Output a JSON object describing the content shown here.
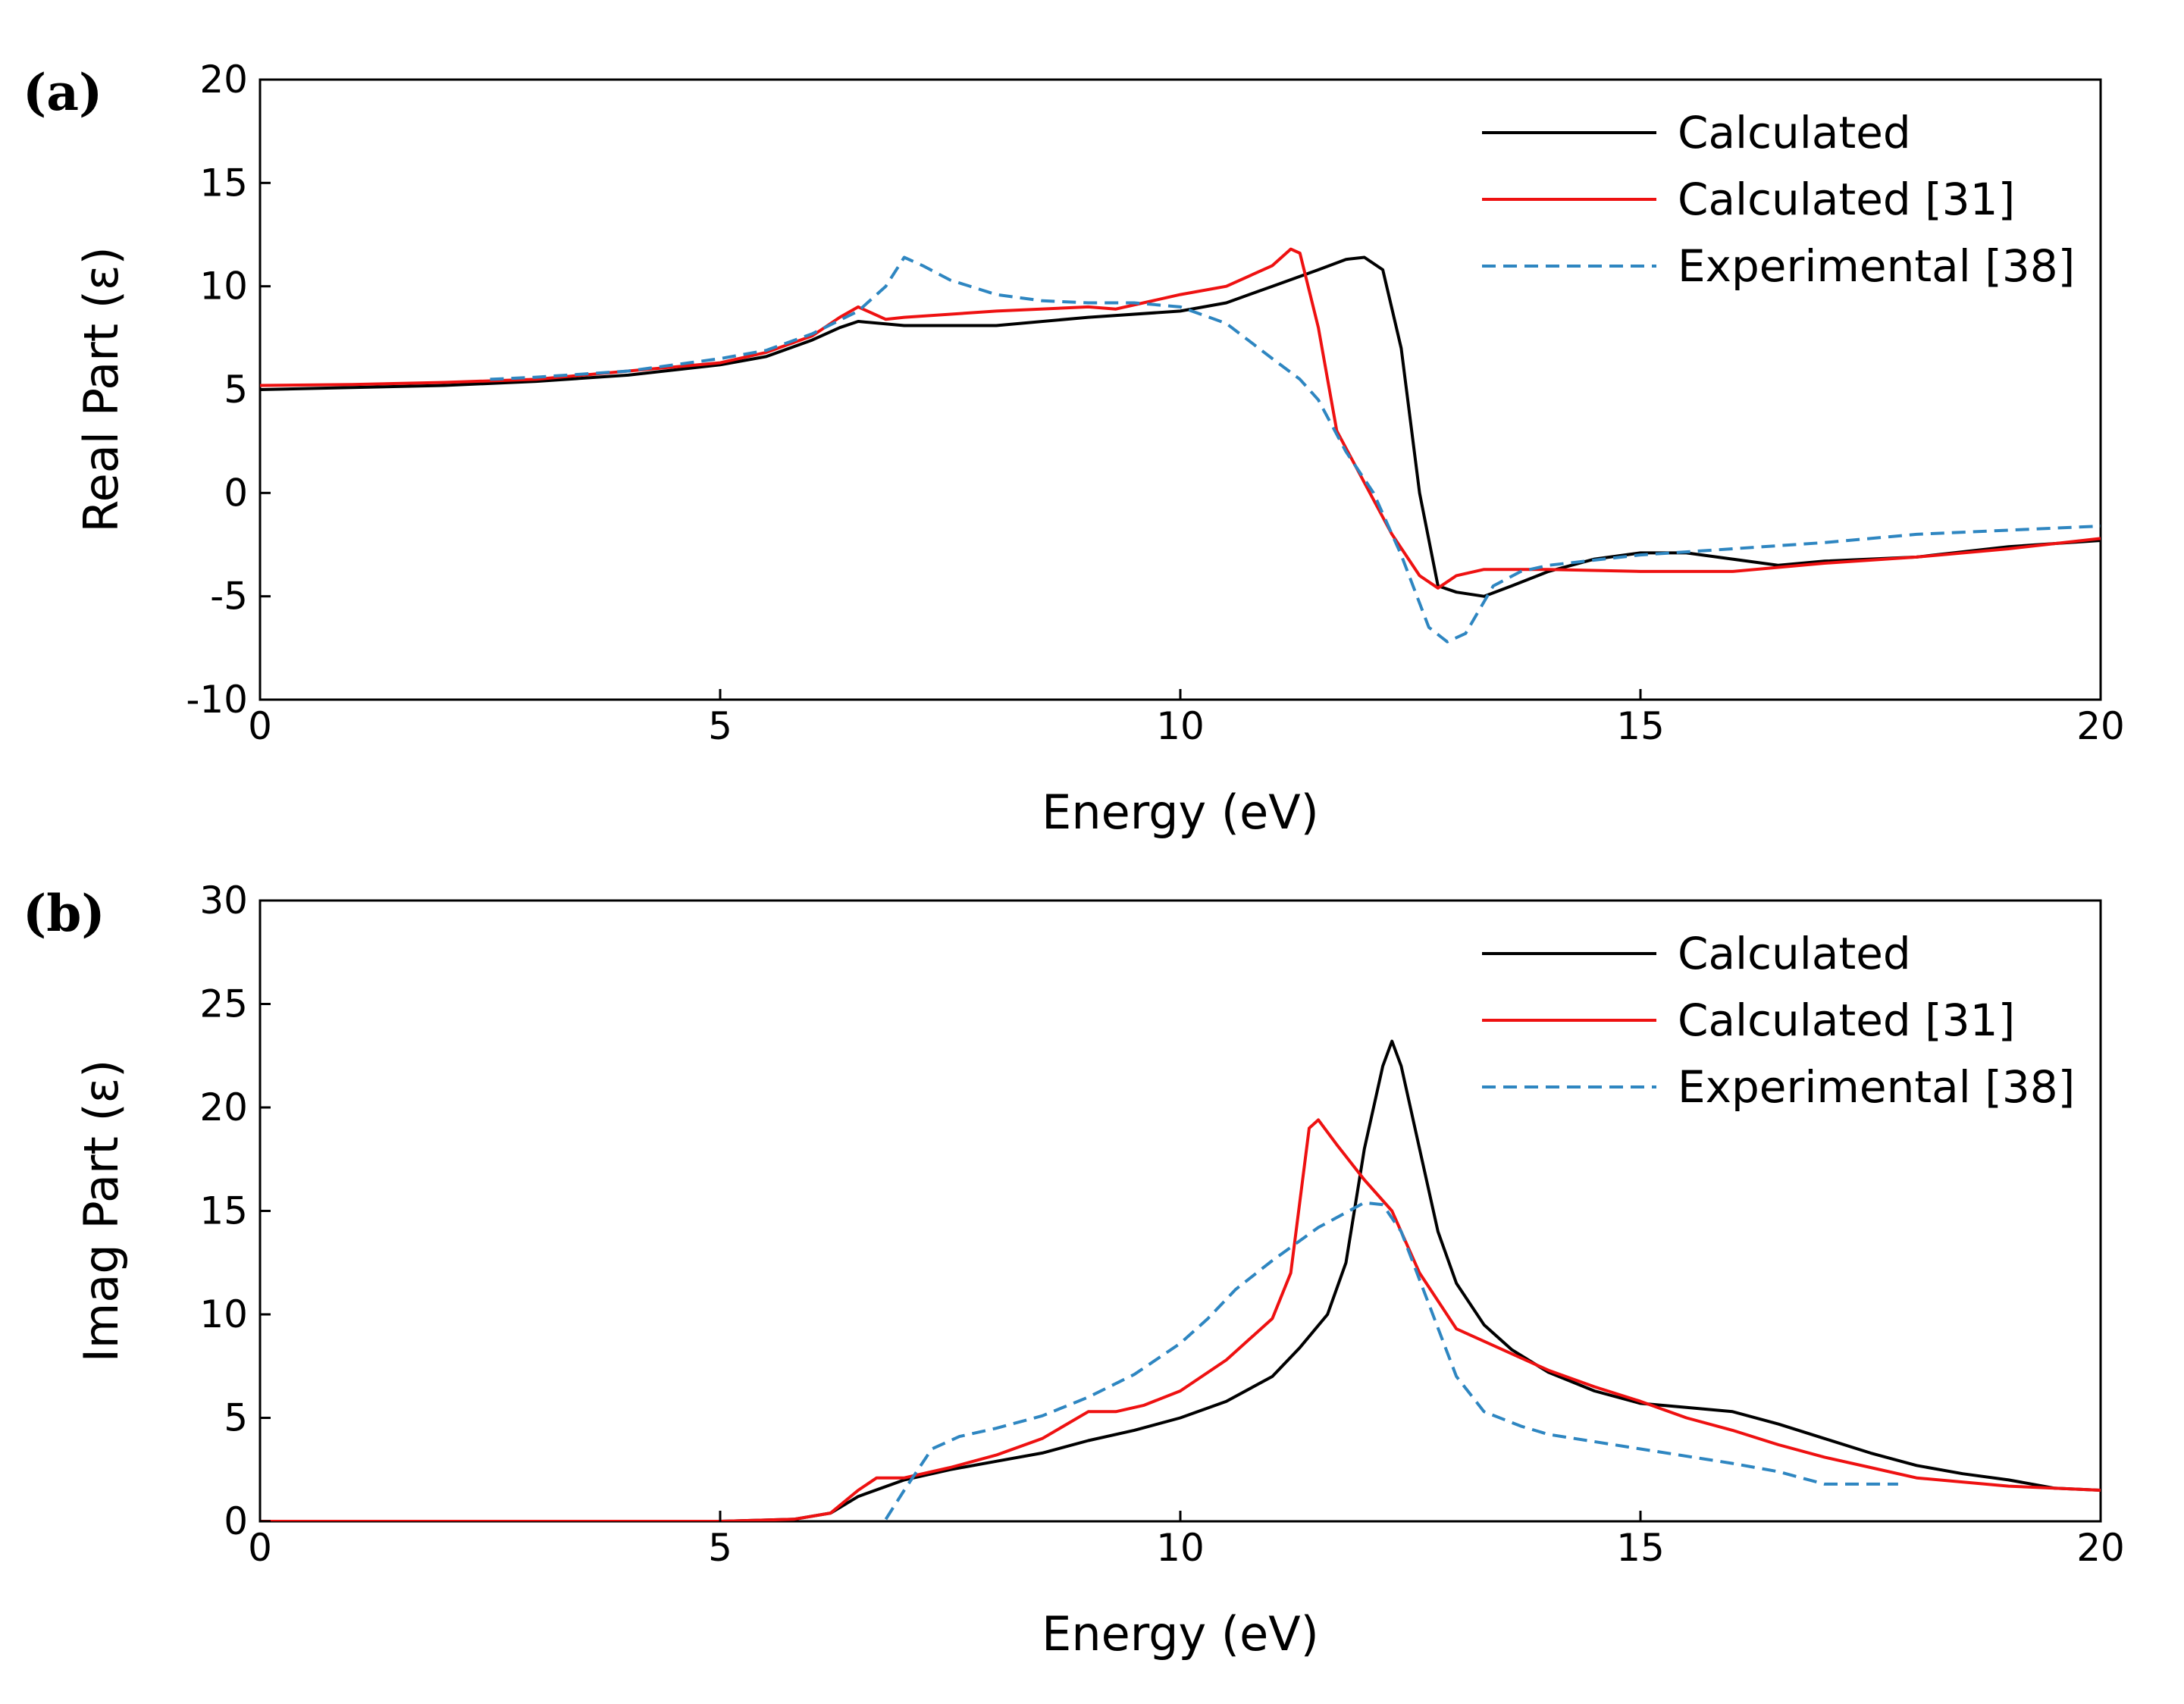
{
  "chart_data": [
    {
      "panel_label": "(a)",
      "type": "line",
      "xlabel": "Energy (eV)",
      "ylabel": "Real Part (ε)",
      "xlim": [
        0,
        20
      ],
      "ylim": [
        -10,
        20
      ],
      "xticks": [
        0,
        5,
        10,
        15,
        20
      ],
      "yticks": [
        -10,
        -5,
        0,
        5,
        10,
        15,
        20
      ],
      "grid": false,
      "legend_position": "top-right",
      "series": [
        {
          "name": "Calculated",
          "color": "#000000",
          "dash": "solid",
          "points": [
            [
              0,
              5.0
            ],
            [
              1,
              5.1
            ],
            [
              2,
              5.2
            ],
            [
              3,
              5.4
            ],
            [
              4,
              5.7
            ],
            [
              5,
              6.2
            ],
            [
              5.5,
              6.6
            ],
            [
              6,
              7.4
            ],
            [
              6.3,
              8.0
            ],
            [
              6.5,
              8.3
            ],
            [
              7,
              8.1
            ],
            [
              8,
              8.1
            ],
            [
              9,
              8.5
            ],
            [
              10,
              8.8
            ],
            [
              10.5,
              9.2
            ],
            [
              11,
              10.0
            ],
            [
              11.5,
              10.8
            ],
            [
              11.8,
              11.3
            ],
            [
              12,
              11.4
            ],
            [
              12.2,
              10.8
            ],
            [
              12.4,
              7.0
            ],
            [
              12.6,
              0.0
            ],
            [
              12.8,
              -4.5
            ],
            [
              13,
              -4.8
            ],
            [
              13.3,
              -5.0
            ],
            [
              13.6,
              -4.5
            ],
            [
              14,
              -3.8
            ],
            [
              14.5,
              -3.2
            ],
            [
              15,
              -2.9
            ],
            [
              15.5,
              -2.9
            ],
            [
              16,
              -3.2
            ],
            [
              16.5,
              -3.5
            ],
            [
              17,
              -3.3
            ],
            [
              18,
              -3.1
            ],
            [
              19,
              -2.6
            ],
            [
              20,
              -2.3
            ]
          ]
        },
        {
          "name": "Calculated [31]",
          "color": "#ee1111",
          "dash": "solid",
          "points": [
            [
              0,
              5.2
            ],
            [
              1,
              5.25
            ],
            [
              2,
              5.35
            ],
            [
              3,
              5.5
            ],
            [
              4,
              5.9
            ],
            [
              5,
              6.3
            ],
            [
              5.5,
              6.8
            ],
            [
              6,
              7.6
            ],
            [
              6.3,
              8.5
            ],
            [
              6.5,
              9.0
            ],
            [
              6.8,
              8.4
            ],
            [
              7,
              8.5
            ],
            [
              8,
              8.8
            ],
            [
              9,
              9.0
            ],
            [
              9.3,
              8.9
            ],
            [
              9.6,
              9.2
            ],
            [
              10,
              9.6
            ],
            [
              10.5,
              10.0
            ],
            [
              11,
              11.0
            ],
            [
              11.2,
              11.8
            ],
            [
              11.3,
              11.6
            ],
            [
              11.5,
              8.0
            ],
            [
              11.7,
              3.0
            ],
            [
              12,
              0.5
            ],
            [
              12.3,
              -2.0
            ],
            [
              12.6,
              -4.0
            ],
            [
              12.8,
              -4.6
            ],
            [
              13,
              -4.0
            ],
            [
              13.3,
              -3.7
            ],
            [
              14,
              -3.7
            ],
            [
              15,
              -3.8
            ],
            [
              16,
              -3.8
            ],
            [
              17,
              -3.4
            ],
            [
              18,
              -3.1
            ],
            [
              19,
              -2.7
            ],
            [
              20,
              -2.2
            ]
          ]
        },
        {
          "name": "Experimental [38]",
          "color": "#2e86c1",
          "dash": "dashed",
          "points": [
            [
              2.5,
              5.5
            ],
            [
              3,
              5.6
            ],
            [
              4,
              5.9
            ],
            [
              5,
              6.5
            ],
            [
              5.5,
              6.9
            ],
            [
              6,
              7.7
            ],
            [
              6.5,
              8.8
            ],
            [
              6.8,
              10.0
            ],
            [
              7,
              11.4
            ],
            [
              7.2,
              11.0
            ],
            [
              7.5,
              10.3
            ],
            [
              8,
              9.6
            ],
            [
              8.5,
              9.3
            ],
            [
              9,
              9.2
            ],
            [
              9.5,
              9.2
            ],
            [
              10,
              9.0
            ],
            [
              10.5,
              8.2
            ],
            [
              11,
              6.5
            ],
            [
              11.3,
              5.5
            ],
            [
              11.5,
              4.5
            ],
            [
              11.8,
              2.0
            ],
            [
              12.1,
              0.0
            ],
            [
              12.4,
              -3.0
            ],
            [
              12.7,
              -6.5
            ],
            [
              12.9,
              -7.2
            ],
            [
              13.1,
              -6.8
            ],
            [
              13.4,
              -4.5
            ],
            [
              13.7,
              -3.8
            ],
            [
              14,
              -3.5
            ],
            [
              15,
              -3.0
            ],
            [
              16,
              -2.7
            ],
            [
              17,
              -2.4
            ],
            [
              18,
              -2.0
            ],
            [
              19,
              -1.8
            ],
            [
              20,
              -1.6
            ]
          ]
        }
      ]
    },
    {
      "panel_label": "(b)",
      "type": "line",
      "xlabel": "Energy (eV)",
      "ylabel": "Imag Part (ε)",
      "xlim": [
        0,
        20
      ],
      "ylim": [
        0,
        30
      ],
      "xticks": [
        0,
        5,
        10,
        15,
        20
      ],
      "yticks": [
        0,
        5,
        10,
        15,
        20,
        25,
        30
      ],
      "grid": false,
      "legend_position": "top-right",
      "series": [
        {
          "name": "Calculated",
          "color": "#000000",
          "dash": "solid",
          "points": [
            [
              0,
              0
            ],
            [
              5,
              0
            ],
            [
              5.8,
              0.1
            ],
            [
              6.2,
              0.4
            ],
            [
              6.5,
              1.2
            ],
            [
              7,
              2.0
            ],
            [
              7.5,
              2.5
            ],
            [
              8,
              2.9
            ],
            [
              8.5,
              3.3
            ],
            [
              9,
              3.9
            ],
            [
              9.5,
              4.4
            ],
            [
              10,
              5.0
            ],
            [
              10.5,
              5.8
            ],
            [
              11,
              7.0
            ],
            [
              11.3,
              8.4
            ],
            [
              11.6,
              10.0
            ],
            [
              11.8,
              12.5
            ],
            [
              12,
              18.0
            ],
            [
              12.2,
              22.0
            ],
            [
              12.3,
              23.2
            ],
            [
              12.4,
              22.0
            ],
            [
              12.6,
              18.0
            ],
            [
              12.8,
              14.0
            ],
            [
              13,
              11.5
            ],
            [
              13.3,
              9.5
            ],
            [
              13.6,
              8.3
            ],
            [
              14,
              7.2
            ],
            [
              14.5,
              6.3
            ],
            [
              15,
              5.7
            ],
            [
              15.5,
              5.5
            ],
            [
              16,
              5.3
            ],
            [
              16.5,
              4.7
            ],
            [
              17,
              4.0
            ],
            [
              17.5,
              3.3
            ],
            [
              18,
              2.7
            ],
            [
              18.5,
              2.3
            ],
            [
              19,
              2.0
            ],
            [
              19.5,
              1.6
            ],
            [
              20,
              1.5
            ]
          ]
        },
        {
          "name": "Calculated [31]",
          "color": "#ee1111",
          "dash": "solid",
          "points": [
            [
              0,
              0
            ],
            [
              5,
              0
            ],
            [
              5.8,
              0.1
            ],
            [
              6.2,
              0.4
            ],
            [
              6.5,
              1.5
            ],
            [
              6.7,
              2.1
            ],
            [
              7,
              2.1
            ],
            [
              7.5,
              2.6
            ],
            [
              8,
              3.2
            ],
            [
              8.5,
              4.0
            ],
            [
              9,
              5.3
            ],
            [
              9.3,
              5.3
            ],
            [
              9.6,
              5.6
            ],
            [
              10,
              6.3
            ],
            [
              10.5,
              7.8
            ],
            [
              11,
              9.8
            ],
            [
              11.2,
              12.0
            ],
            [
              11.4,
              19.0
            ],
            [
              11.5,
              19.4
            ],
            [
              11.7,
              18.2
            ],
            [
              12,
              16.5
            ],
            [
              12.3,
              15.0
            ],
            [
              12.6,
              12.0
            ],
            [
              13,
              9.3
            ],
            [
              13.5,
              8.3
            ],
            [
              14,
              7.3
            ],
            [
              14.5,
              6.5
            ],
            [
              15,
              5.8
            ],
            [
              15.5,
              5.0
            ],
            [
              16,
              4.4
            ],
            [
              16.5,
              3.7
            ],
            [
              17,
              3.1
            ],
            [
              17.5,
              2.6
            ],
            [
              18,
              2.1
            ],
            [
              19,
              1.7
            ],
            [
              20,
              1.5
            ]
          ]
        },
        {
          "name": "Experimental [38]",
          "color": "#2e86c1",
          "dash": "dashed",
          "points": [
            [
              6.8,
              0.1
            ],
            [
              7.0,
              1.5
            ],
            [
              7.3,
              3.5
            ],
            [
              7.6,
              4.1
            ],
            [
              8,
              4.5
            ],
            [
              8.5,
              5.1
            ],
            [
              9,
              6.0
            ],
            [
              9.5,
              7.1
            ],
            [
              10,
              8.6
            ],
            [
              10.3,
              9.8
            ],
            [
              10.6,
              11.2
            ],
            [
              11,
              12.6
            ],
            [
              11.5,
              14.2
            ],
            [
              12,
              15.4
            ],
            [
              12.2,
              15.3
            ],
            [
              12.4,
              14.0
            ],
            [
              12.7,
              10.5
            ],
            [
              13,
              7.0
            ],
            [
              13.3,
              5.3
            ],
            [
              13.7,
              4.6
            ],
            [
              14,
              4.2
            ],
            [
              15,
              3.5
            ],
            [
              16,
              2.8
            ],
            [
              16.5,
              2.4
            ],
            [
              17,
              1.8
            ],
            [
              17.5,
              1.8
            ],
            [
              17.8,
              1.8
            ]
          ]
        }
      ]
    }
  ]
}
